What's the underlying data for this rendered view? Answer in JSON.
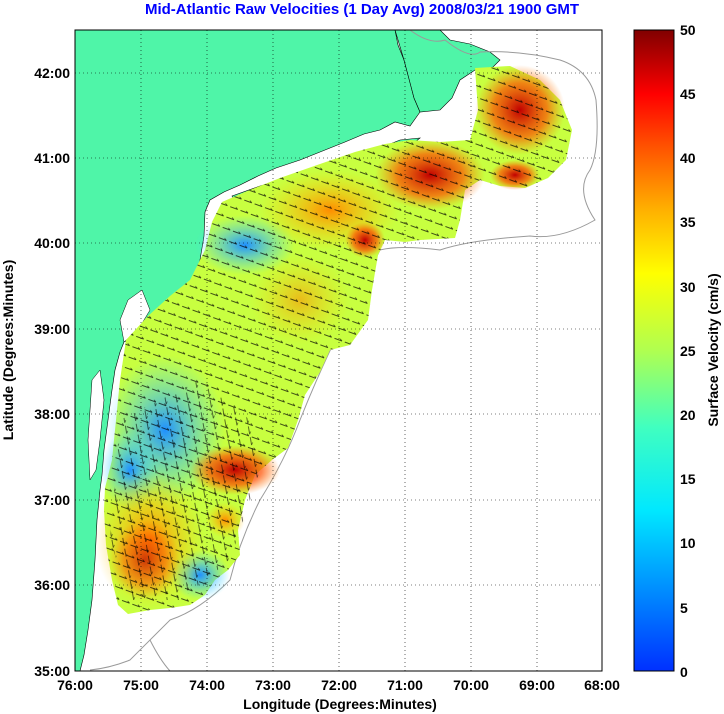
{
  "title": "Mid-Atlantic Raw Velocities (1 Day Avg) 2008/03/21 1900 GMT",
  "xlabel": "Longitude (Degrees:Minutes)",
  "ylabel": "Latitude (Degrees:Minutes)",
  "colorbar_label": "Surface Velocity (cm/s)",
  "x_ticks": [
    "76:00",
    "75:00",
    "74:00",
    "73:00",
    "72:00",
    "71:00",
    "70:00",
    "69:00",
    "68:00"
  ],
  "y_ticks": [
    "42:00",
    "41:00",
    "40:00",
    "39:00",
    "38:00",
    "37:00",
    "36:00",
    "35:00"
  ],
  "colorbar_ticks": [
    "50",
    "45",
    "40",
    "35",
    "30",
    "25",
    "20",
    "15",
    "10",
    "5",
    "0"
  ],
  "colors": {
    "land": "#4ff5a8",
    "title": "#0000ff",
    "contour": "#9a9a9a",
    "vector": "#000000"
  },
  "chart_data": {
    "type": "heatmap",
    "x_range_deg_west": [
      76,
      68
    ],
    "y_range_deg_north": [
      35,
      42.5
    ],
    "colorbar_range_cm_s": [
      0,
      50
    ],
    "colormap": "jet",
    "grid": "dotted"
  }
}
